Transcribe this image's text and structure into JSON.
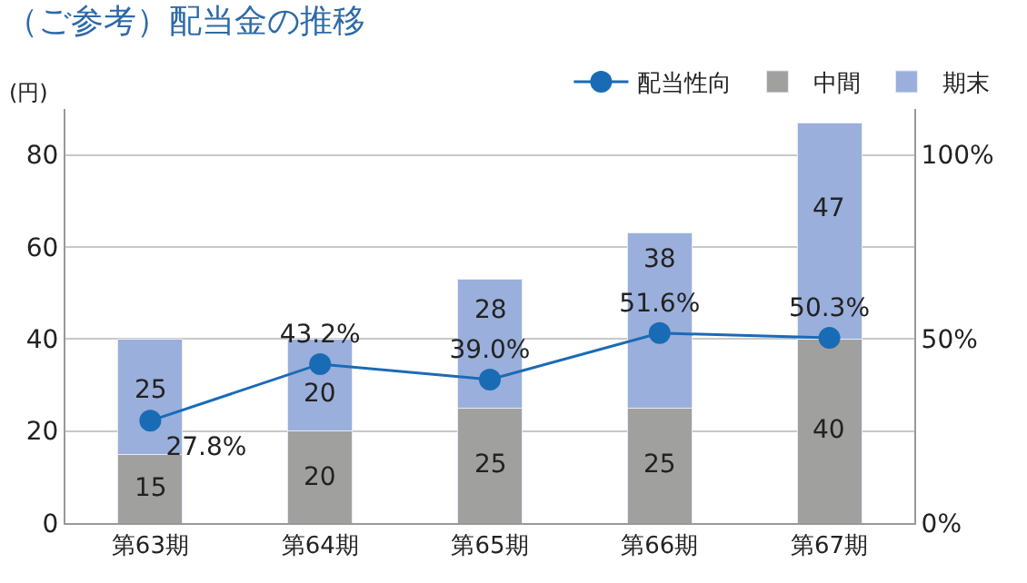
{
  "chart_data": {
    "type": "bar",
    "title": "（ご参考）配当金の推移",
    "ylabel": "(円)",
    "categories": [
      "第63期",
      "第64期",
      "第65期",
      "第66期",
      "第67期"
    ],
    "stacked": true,
    "data_labels": true,
    "series": [
      {
        "name": "中間",
        "color": "#a0a09f",
        "values": [
          15,
          20,
          25,
          25,
          40
        ]
      },
      {
        "name": "期末",
        "color": "#9aafdb",
        "values": [
          25,
          20,
          28,
          38,
          47
        ]
      },
      {
        "name": "配当性向",
        "type": "line",
        "axis": "y2",
        "color": "#1a6bb5",
        "marker": "circle",
        "values": [
          27.8,
          43.2,
          39.0,
          51.6,
          50.3
        ],
        "value_labels": [
          "27.8%",
          "43.2%",
          "39.0%",
          "51.6%",
          "50.3%"
        ]
      }
    ],
    "ylim": [
      0,
      90
    ],
    "yticks": [
      0,
      20,
      40,
      60,
      80
    ],
    "y2lim": [
      0,
      112.5
    ],
    "y2ticks": [
      {
        "value": 0,
        "label": "0%"
      },
      {
        "value": 50,
        "label": "50%"
      },
      {
        "value": 100,
        "label": "100%"
      }
    ],
    "grid": "y",
    "legend": "top right"
  }
}
